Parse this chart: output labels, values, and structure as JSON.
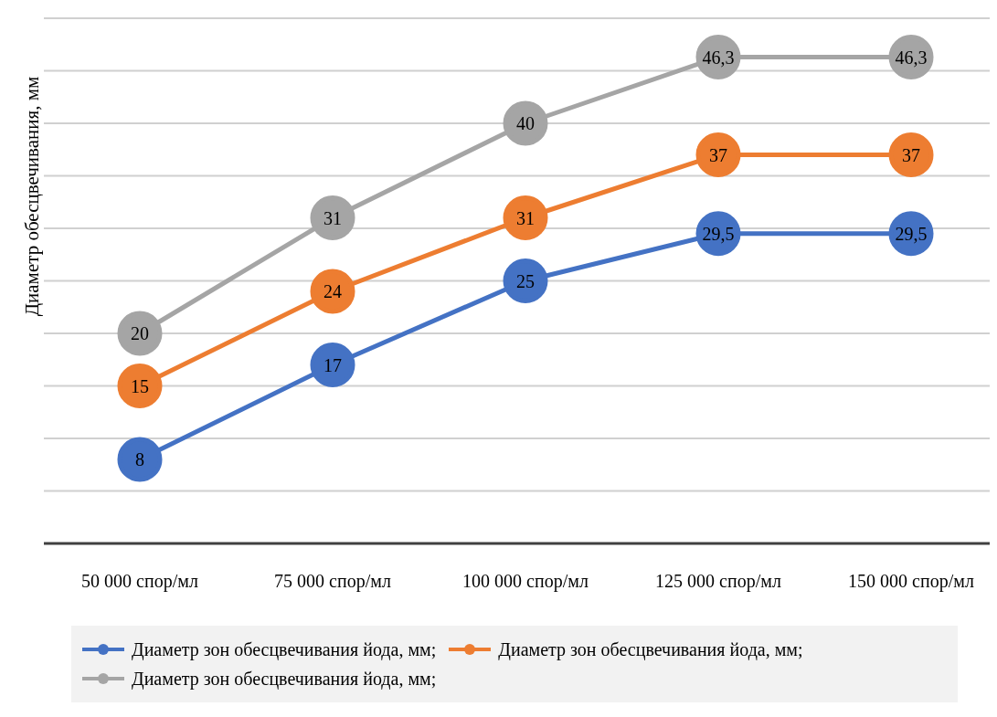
{
  "chart_data": {
    "type": "line",
    "ylabel": "Диаметр обесцвечивания, мм",
    "categories": [
      "50 000 спор/мл",
      "75 000 спор/мл",
      "100 000 спор/мл",
      "125 000 спор/мл",
      "150 000 спор/мл"
    ],
    "series": [
      {
        "name": "Диаметр зон обесцвечивания йода, мм;",
        "color": "#4472c4",
        "values": [
          8,
          17,
          25,
          29.5,
          29.5
        ],
        "value_labels": [
          "8",
          "17",
          "25",
          "29,5",
          "29,5"
        ]
      },
      {
        "name": "Диаметр зон обесцвечивания йода, мм;",
        "color": "#ed7d31",
        "values": [
          15,
          24,
          31,
          37,
          37
        ],
        "value_labels": [
          "15",
          "24",
          "31",
          "37",
          "37"
        ]
      },
      {
        "name": "Диаметр зон обесцвечивания йода, мм;",
        "color": "#a5a5a5",
        "values": [
          20,
          31,
          40,
          46.3,
          46.3
        ],
        "value_labels": [
          "20",
          "31",
          "40",
          "46,3",
          "46,3"
        ]
      }
    ],
    "tick_labels": "x",
    "grid": "y",
    "legend": "bottom",
    "marker": "circle",
    "line_style": "solid"
  }
}
